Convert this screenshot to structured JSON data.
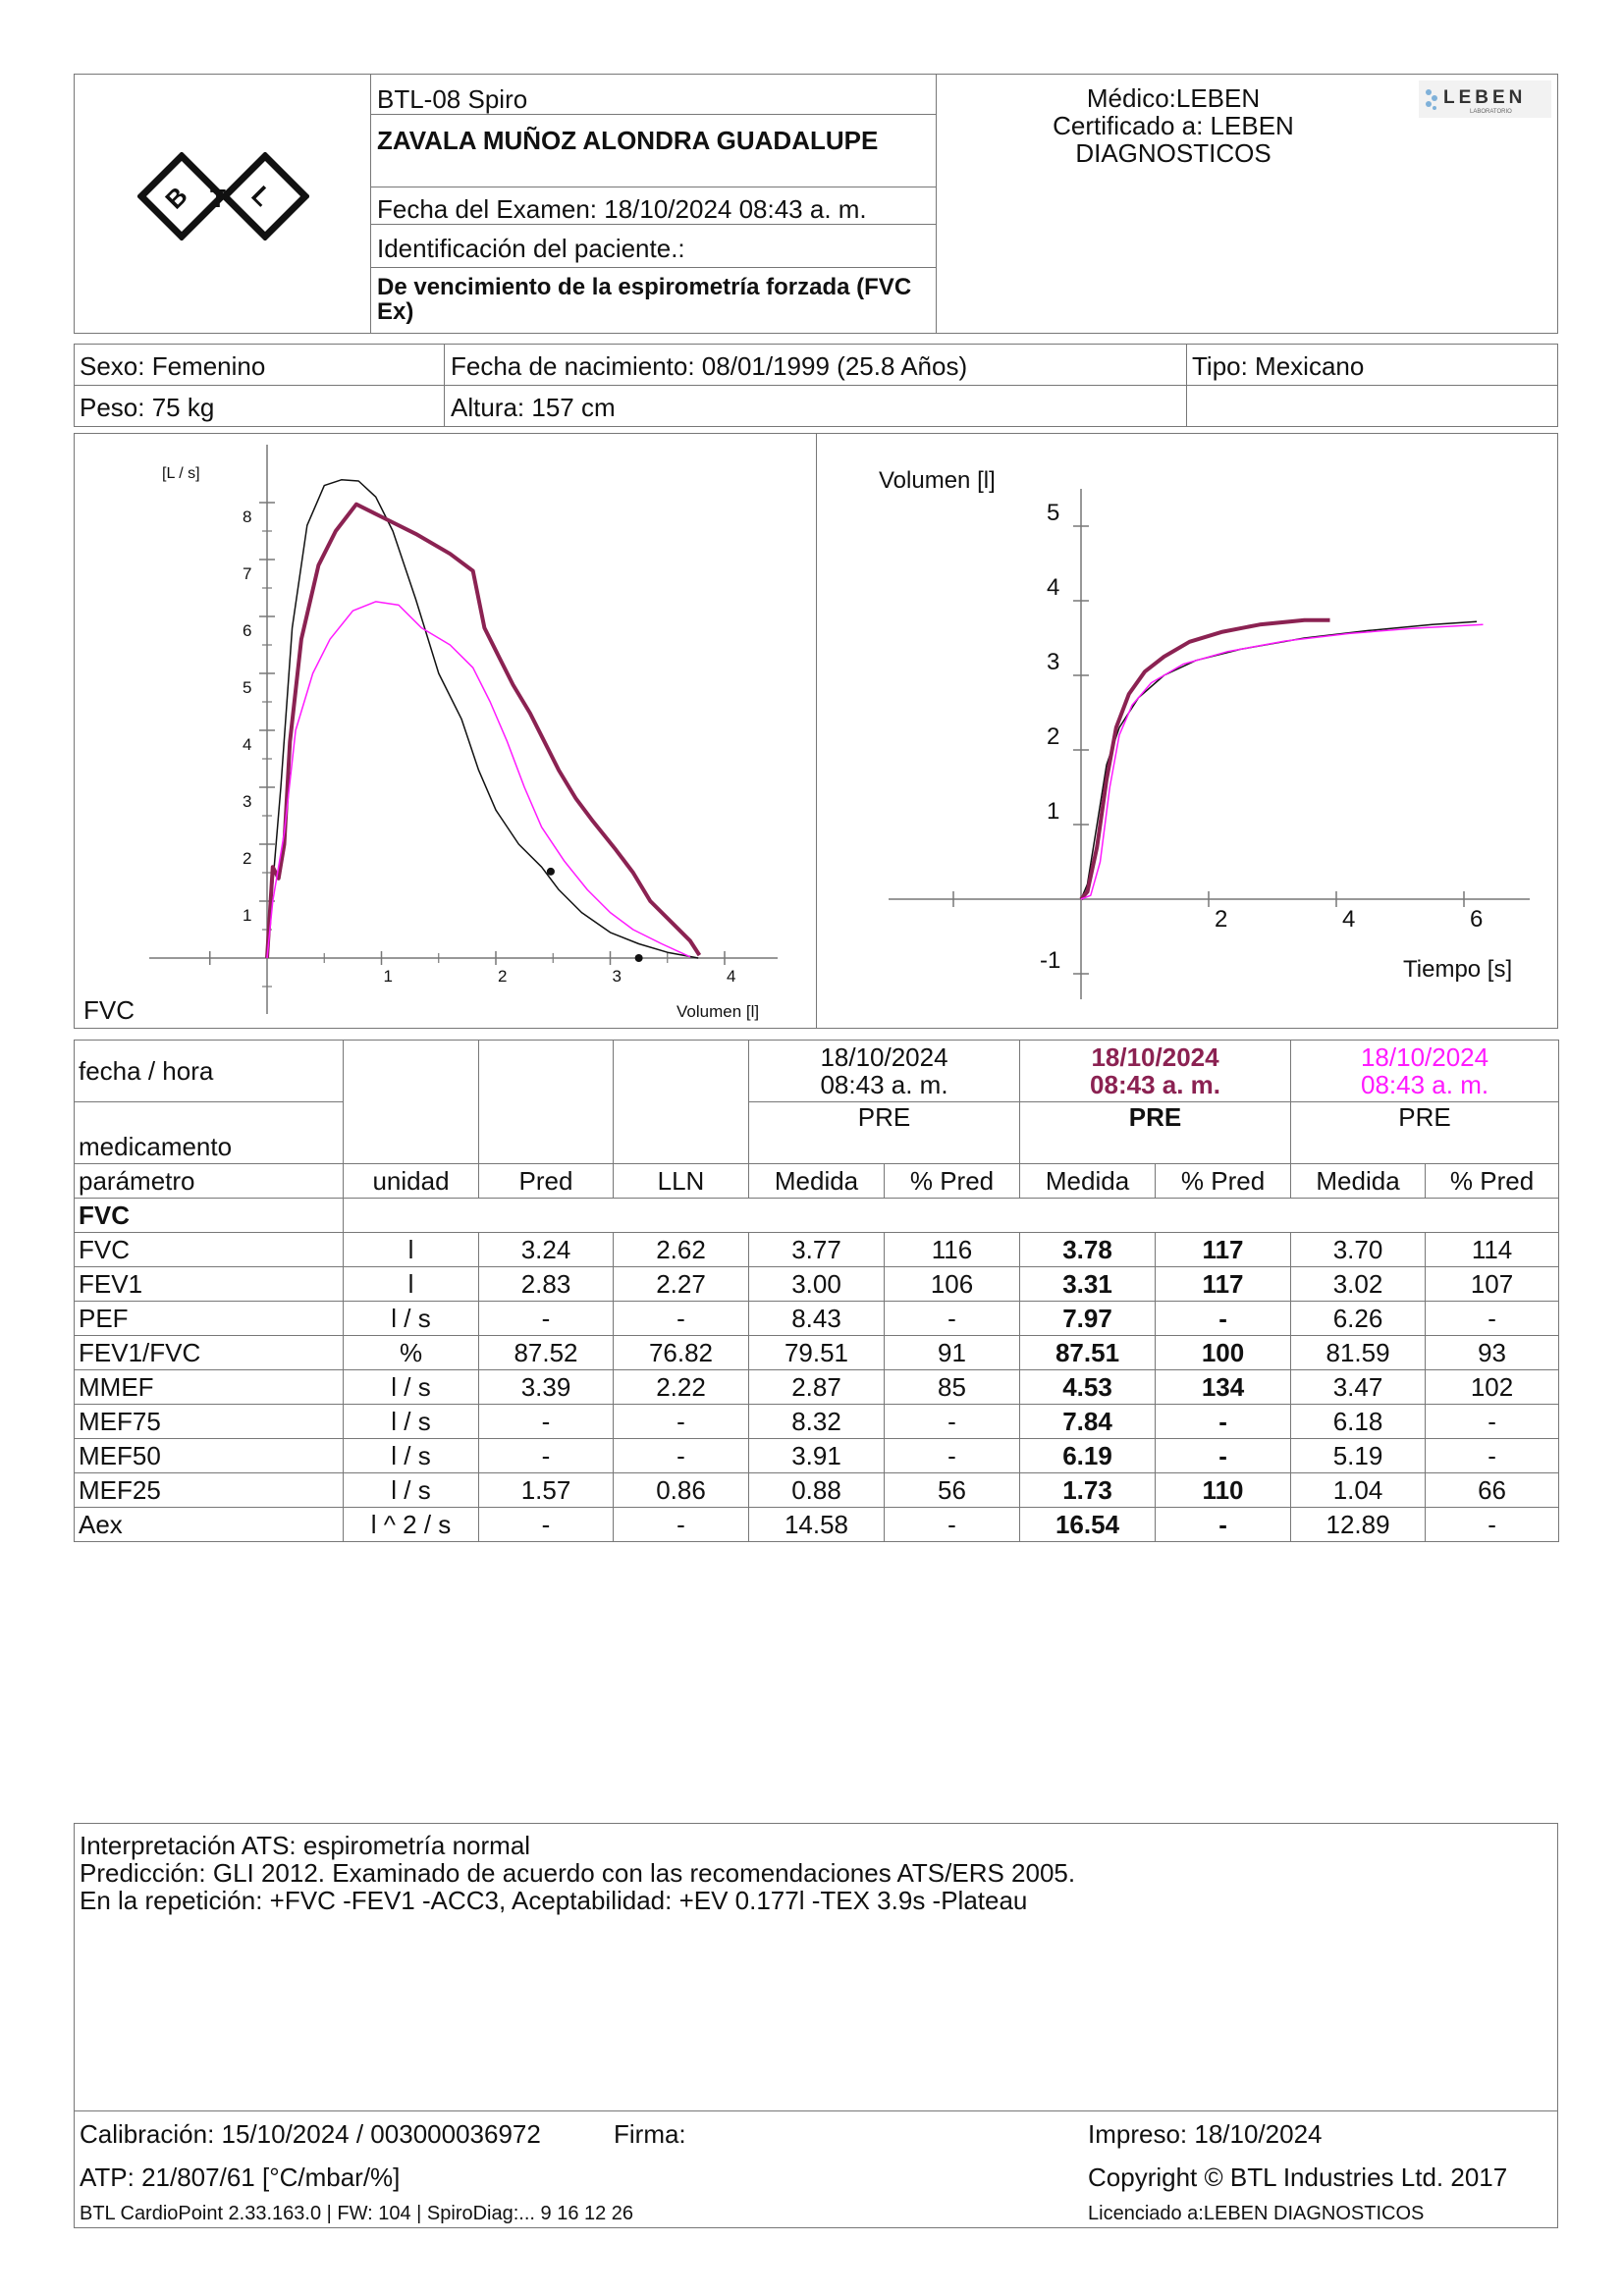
{
  "header": {
    "logo_text": "BTL",
    "device": "BTL-08 Spiro",
    "patient_name": "ZAVALA MUÑOZ ALONDRA GUADALUPE",
    "exam_date": "Fecha del Examen:  18/10/2024 08:43 a. m.",
    "patient_id": "Identificación del paciente.:",
    "test_type": "De vencimiento de la espirometría forzada (FVC Ex)",
    "doctor": "Médico:LEBEN",
    "certified_1": "Certificado a: LEBEN",
    "certified_2": "DIAGNOSTICOS",
    "lab_logo": "LEBEN",
    "lab_logo_sub": "LABORATORIO"
  },
  "patient": {
    "sex": "Sexo: Femenino",
    "dob": "Fecha de nacimiento: 08/01/1999 (25.8 Años)",
    "type": "Tipo: Mexicano",
    "weight": "Peso: 75 kg",
    "height": "Altura: 157 cm"
  },
  "colors": {
    "trial1": "#111111",
    "trial2": "#8b2252",
    "trial3": "#ff1aff",
    "grid": "#777777"
  },
  "chart_data": [
    {
      "type": "line",
      "title": "",
      "xlabel": "Volumen [l]",
      "ylabel": "[L / s]",
      "corner_label": "FVC",
      "x_ticks": [
        "1",
        "2",
        "3",
        "4"
      ],
      "y_ticks": [
        "1",
        "2",
        "3",
        "4",
        "5",
        "6",
        "7",
        "8"
      ],
      "xlim": [
        -1,
        4.4
      ],
      "ylim": [
        -0.6,
        9
      ],
      "series": [
        {
          "color": "#111111",
          "width": 1.5,
          "points": [
            [
              0,
              0
            ],
            [
              0.05,
              1.3
            ],
            [
              0.12,
              3.0
            ],
            [
              0.22,
              5.8
            ],
            [
              0.35,
              7.6
            ],
            [
              0.5,
              8.3
            ],
            [
              0.65,
              8.4
            ],
            [
              0.8,
              8.38
            ],
            [
              0.95,
              8.1
            ],
            [
              1.1,
              7.5
            ],
            [
              1.3,
              6.3
            ],
            [
              1.5,
              5.0
            ],
            [
              1.7,
              4.2
            ],
            [
              1.85,
              3.3
            ],
            [
              2.0,
              2.6
            ],
            [
              2.2,
              2.0
            ],
            [
              2.4,
              1.6
            ],
            [
              2.55,
              1.2
            ],
            [
              2.75,
              0.8
            ],
            [
              3.0,
              0.45
            ],
            [
              3.25,
              0.25
            ],
            [
              3.5,
              0.1
            ],
            [
              3.77,
              0.0
            ]
          ]
        },
        {
          "color": "#8b2252",
          "width": 4,
          "points": [
            [
              0,
              0
            ],
            [
              0.05,
              1.6
            ],
            [
              0.1,
              1.4
            ],
            [
              0.15,
              2.0
            ],
            [
              0.2,
              3.8
            ],
            [
              0.3,
              5.6
            ],
            [
              0.45,
              6.9
            ],
            [
              0.6,
              7.5
            ],
            [
              0.78,
              7.97
            ],
            [
              1.0,
              7.75
            ],
            [
              1.3,
              7.45
            ],
            [
              1.6,
              7.1
            ],
            [
              1.8,
              6.8
            ],
            [
              1.9,
              5.8
            ],
            [
              2.0,
              5.4
            ],
            [
              2.15,
              4.8
            ],
            [
              2.3,
              4.3
            ],
            [
              2.4,
              3.9
            ],
            [
              2.55,
              3.3
            ],
            [
              2.7,
              2.8
            ],
            [
              2.85,
              2.4
            ],
            [
              3.05,
              1.9
            ],
            [
              3.2,
              1.5
            ],
            [
              3.35,
              1.0
            ],
            [
              3.55,
              0.6
            ],
            [
              3.7,
              0.3
            ],
            [
              3.78,
              0.05
            ]
          ]
        },
        {
          "color": "#ff1aff",
          "width": 1.5,
          "points": [
            [
              0,
              0
            ],
            [
              0.05,
              1.0
            ],
            [
              0.15,
              2.2
            ],
            [
              0.25,
              4.0
            ],
            [
              0.4,
              5.0
            ],
            [
              0.55,
              5.6
            ],
            [
              0.75,
              6.1
            ],
            [
              0.95,
              6.26
            ],
            [
              1.15,
              6.2
            ],
            [
              1.35,
              5.8
            ],
            [
              1.6,
              5.5
            ],
            [
              1.8,
              5.1
            ],
            [
              1.95,
              4.5
            ],
            [
              2.1,
              3.8
            ],
            [
              2.25,
              3.0
            ],
            [
              2.4,
              2.3
            ],
            [
              2.6,
              1.7
            ],
            [
              2.8,
              1.2
            ],
            [
              3.0,
              0.8
            ],
            [
              3.2,
              0.5
            ],
            [
              3.45,
              0.25
            ],
            [
              3.7,
              0.02
            ]
          ]
        }
      ],
      "markers": [
        [
          2.48,
          1.52
        ],
        [
          3.25,
          0.0
        ]
      ]
    },
    {
      "type": "line",
      "title": "",
      "xlabel": "Tiempo [s]",
      "ylabel": "Volumen [l]",
      "x_ticks": [
        "2",
        "4",
        "6"
      ],
      "y_ticks": [
        "-1",
        "1",
        "2",
        "3",
        "4",
        "5"
      ],
      "xlim": [
        -3,
        7
      ],
      "ylim": [
        -1.5,
        5.8
      ],
      "series": [
        {
          "color": "#111111",
          "width": 1.5,
          "points": [
            [
              0,
              0
            ],
            [
              0.1,
              0.2
            ],
            [
              0.25,
              1.0
            ],
            [
              0.4,
              1.8
            ],
            [
              0.6,
              2.3
            ],
            [
              0.9,
              2.7
            ],
            [
              1.3,
              3.0
            ],
            [
              1.8,
              3.2
            ],
            [
              2.5,
              3.35
            ],
            [
              3.5,
              3.5
            ],
            [
              4.5,
              3.6
            ],
            [
              5.5,
              3.68
            ],
            [
              6.2,
              3.72
            ]
          ]
        },
        {
          "color": "#8b2252",
          "width": 4,
          "points": [
            [
              0,
              0
            ],
            [
              0.1,
              0.1
            ],
            [
              0.25,
              0.7
            ],
            [
              0.4,
              1.6
            ],
            [
              0.55,
              2.3
            ],
            [
              0.75,
              2.75
            ],
            [
              1.0,
              3.05
            ],
            [
              1.3,
              3.25
            ],
            [
              1.7,
              3.45
            ],
            [
              2.2,
              3.58
            ],
            [
              2.8,
              3.68
            ],
            [
              3.5,
              3.74
            ],
            [
              3.9,
              3.74
            ]
          ]
        },
        {
          "color": "#ff1aff",
          "width": 1.5,
          "points": [
            [
              0,
              0
            ],
            [
              0.15,
              0.05
            ],
            [
              0.3,
              0.5
            ],
            [
              0.45,
              1.5
            ],
            [
              0.6,
              2.2
            ],
            [
              0.8,
              2.6
            ],
            [
              1.1,
              2.9
            ],
            [
              1.6,
              3.15
            ],
            [
              2.3,
              3.32
            ],
            [
              3.2,
              3.46
            ],
            [
              4.2,
              3.56
            ],
            [
              5.2,
              3.63
            ],
            [
              6.3,
              3.68
            ]
          ]
        }
      ]
    }
  ],
  "table": {
    "row_label_date": "fecha / hora",
    "row_label_med": "medicamento",
    "trials": [
      {
        "date": "18/10/2024",
        "time": "08:43 a. m.",
        "med": "PRE"
      },
      {
        "date": "18/10/2024",
        "time": "08:43 a. m.",
        "med": "PRE"
      },
      {
        "date": "18/10/2024",
        "time": "08:43 a. m.",
        "med": "PRE"
      }
    ],
    "headers": [
      "parámetro",
      "unidad",
      "Pred",
      "LLN",
      "Medida",
      "% Pred",
      "Medida",
      "% Pred",
      "Medida",
      "% Pred"
    ],
    "section": "FVC",
    "rows": [
      [
        "FVC",
        "l",
        "3.24",
        "2.62",
        "3.77",
        "116",
        "3.78",
        "117",
        "3.70",
        "114"
      ],
      [
        "FEV1",
        "l",
        "2.83",
        "2.27",
        "3.00",
        "106",
        "3.31",
        "117",
        "3.02",
        "107"
      ],
      [
        "PEF",
        "l / s",
        "-",
        "-",
        "8.43",
        "-",
        "7.97",
        "-",
        "6.26",
        "-"
      ],
      [
        "FEV1/FVC",
        "%",
        "87.52",
        "76.82",
        "79.51",
        "91",
        "87.51",
        "100",
        "81.59",
        "93"
      ],
      [
        "MMEF",
        "l / s",
        "3.39",
        "2.22",
        "2.87",
        "85",
        "4.53",
        "134",
        "3.47",
        "102"
      ],
      [
        "MEF75",
        "l / s",
        "-",
        "-",
        "8.32",
        "-",
        "7.84",
        "-",
        "6.18",
        "-"
      ],
      [
        "MEF50",
        "l / s",
        "-",
        "-",
        "3.91",
        "-",
        "6.19",
        "-",
        "5.19",
        "-"
      ],
      [
        "MEF25",
        "l / s",
        "1.57",
        "0.86",
        "0.88",
        "56",
        "1.73",
        "110",
        "1.04",
        "66"
      ],
      [
        "Aex",
        "l ^ 2 / s",
        "-",
        "-",
        "14.58",
        "-",
        "16.54",
        "-",
        "12.89",
        "-"
      ]
    ]
  },
  "interpretation": {
    "line1": "Interpretación ATS: espirometría normal",
    "line2": "Predicción: GLI 2012. Examinado de acuerdo con las recomendaciones ATS/ERS 2005.",
    "line3": "En la repetición: +FVC -FEV1 -ACC3, Aceptabilidad: +EV 0.177l -TEX 3.9s -Plateau"
  },
  "footer": {
    "calibration": "Calibración: 15/10/2024 / 003000036972",
    "signature": "Firma:",
    "printed": "Impreso: 18/10/2024",
    "atp": "ATP: 21/807/61 [°C/mbar/%]",
    "copyright": "Copyright © BTL Industries Ltd. 2017",
    "software": "BTL CardioPoint 2.33.163.0 | FW: 104 | SpiroDiag:... 9 16 12 26",
    "licensed": "Licenciado a:LEBEN DIAGNOSTICOS"
  }
}
